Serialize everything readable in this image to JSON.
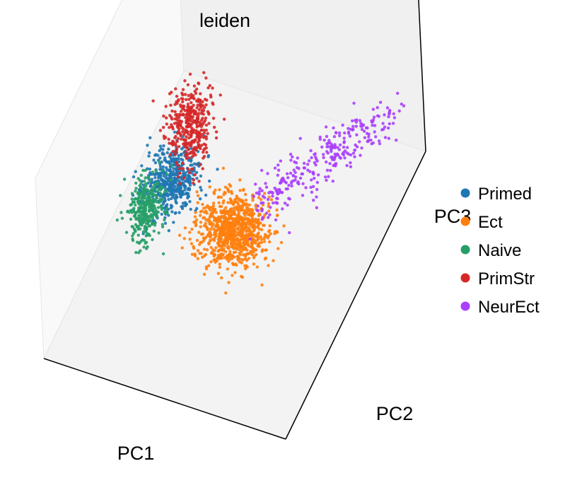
{
  "chart_data": {
    "type": "scatter",
    "projection": "3d",
    "title": "leiden",
    "xlabel": "PC1",
    "ylabel": "PC2",
    "zlabel": "PC3",
    "grid": false,
    "ticks": false,
    "legend_position": "right",
    "series": [
      {
        "name": "Primed",
        "color": "#1f77b4",
        "center": [
          0.27,
          0.47,
          0.36
        ],
        "spread": [
          0.05,
          0.05,
          0.05
        ],
        "count": 520
      },
      {
        "name": "Ect",
        "color": "#ff7f0e",
        "center": [
          0.5,
          0.5,
          0.14
        ],
        "spread": [
          0.07,
          0.05,
          0.05
        ],
        "count": 900
      },
      {
        "name": "Naive",
        "color": "#279e68",
        "center": [
          0.19,
          0.42,
          0.24
        ],
        "spread": [
          0.03,
          0.04,
          0.06
        ],
        "count": 320
      },
      {
        "name": "PrimStr",
        "color": "#d62728",
        "center": [
          0.33,
          0.51,
          0.62
        ],
        "spread": [
          0.04,
          0.04,
          0.09
        ],
        "count": 380
      },
      {
        "name": "NeurEct",
        "color": "#aa40fc",
        "center": [
          0.73,
          0.63,
          0.42
        ],
        "spread": [
          0.11,
          0.06,
          0.1
        ],
        "count": 300
      }
    ]
  }
}
